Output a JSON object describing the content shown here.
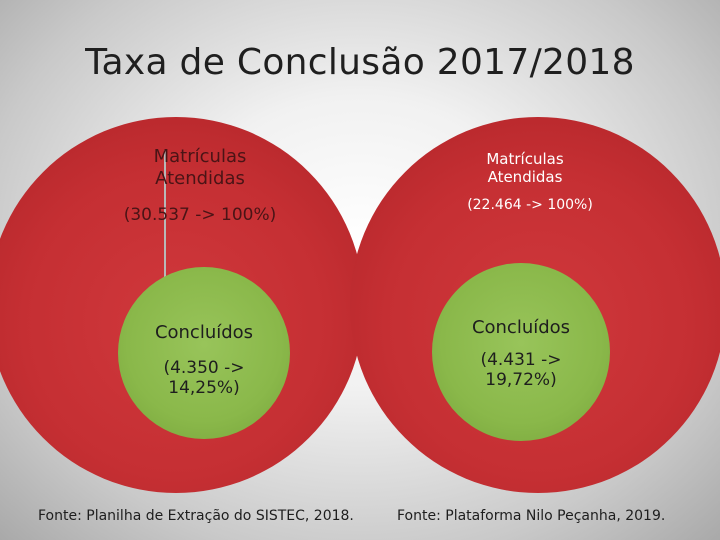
{
  "title": "Taxa de Conclusão 2017/2018",
  "colors": {
    "enrolled_circle": "#c52f33",
    "completed_circle": "#8ab84a",
    "background": "#d9d9d9"
  },
  "left": {
    "enrolled_label": "Matrículas\nAtendidas",
    "enrolled_value": "(30.537 -> 100%)",
    "completed_label": "Concluídos",
    "completed_value": "(4.350 ->\n14,25%)",
    "source": "Fonte: Planilha de Extração do SISTEC, 2018."
  },
  "right": {
    "enrolled_label": "Matrículas\nAtendidas",
    "enrolled_value": "(22.464 -> 100%)",
    "completed_label": "Concluídos",
    "completed_value": "(4.431 ->\n19,72%)",
    "source": "Fonte: Plataforma Nilo Peçanha,  2019."
  }
}
